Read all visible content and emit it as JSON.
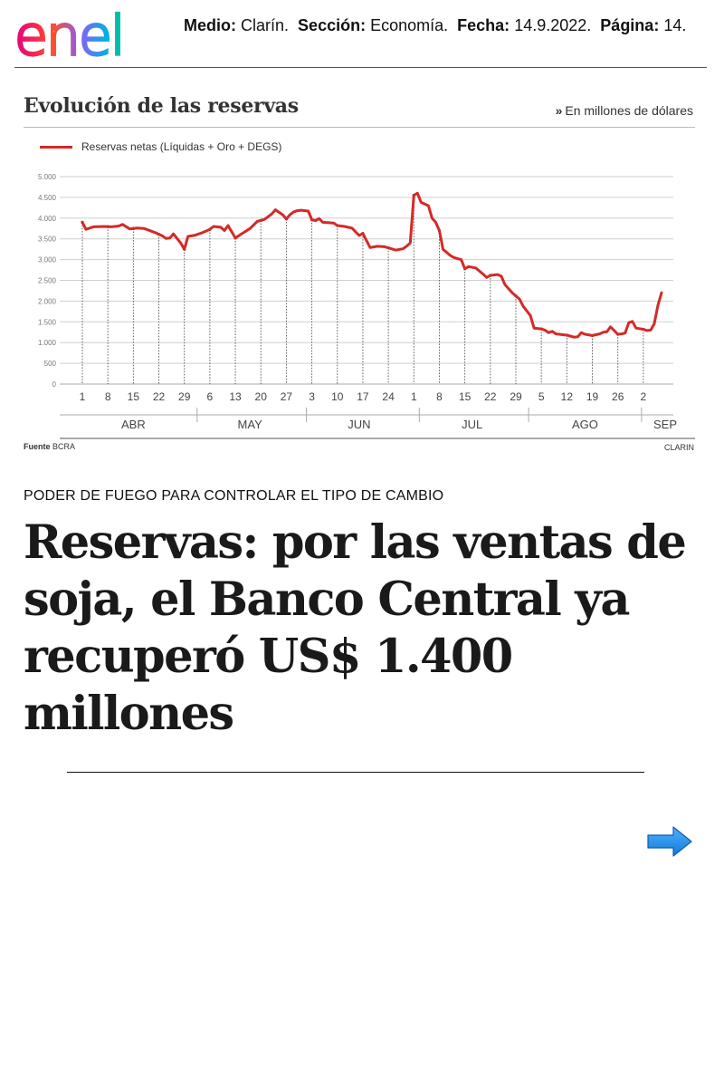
{
  "header": {
    "logo_text": "enel",
    "medio_label": "Medio:",
    "medio_value": "Clarín.",
    "seccion_label": "Sección:",
    "seccion_value": "Economía.",
    "fecha_label": "Fecha:",
    "fecha_value": "14.9.2022.",
    "pagina_label": "Página:",
    "pagina_value": "14."
  },
  "chart_data": {
    "type": "line",
    "title": "Evolución de las reservas",
    "units_note": "En millones de dólares",
    "series": [
      {
        "name": "Reservas netas (Líquidas + Oro + DEGS)",
        "color": "#d42a27",
        "points": [
          [
            0,
            3900
          ],
          [
            1,
            3730
          ],
          [
            3,
            3790
          ],
          [
            6,
            3800
          ],
          [
            8,
            3790
          ],
          [
            10,
            3810
          ],
          [
            11,
            3850
          ],
          [
            13,
            3740
          ],
          [
            15,
            3760
          ],
          [
            17,
            3750
          ],
          [
            20,
            3650
          ],
          [
            22,
            3570
          ],
          [
            23,
            3510
          ],
          [
            24,
            3520
          ],
          [
            25,
            3620
          ],
          [
            27,
            3400
          ],
          [
            28,
            3250
          ],
          [
            29,
            3560
          ],
          [
            31,
            3590
          ],
          [
            33,
            3650
          ],
          [
            35,
            3730
          ],
          [
            36,
            3800
          ],
          [
            38,
            3780
          ],
          [
            39,
            3700
          ],
          [
            40,
            3820
          ],
          [
            42,
            3520
          ],
          [
            43,
            3580
          ],
          [
            46,
            3750
          ],
          [
            48,
            3920
          ],
          [
            50,
            3970
          ],
          [
            52,
            4100
          ],
          [
            53,
            4200
          ],
          [
            55,
            4080
          ],
          [
            56,
            3980
          ],
          [
            57,
            4080
          ],
          [
            58,
            4150
          ],
          [
            59,
            4180
          ],
          [
            60,
            4190
          ],
          [
            62,
            4170
          ],
          [
            63,
            3960
          ],
          [
            64,
            3940
          ],
          [
            65,
            3990
          ],
          [
            66,
            3900
          ],
          [
            69,
            3880
          ],
          [
            70,
            3820
          ],
          [
            72,
            3800
          ],
          [
            74,
            3760
          ],
          [
            76,
            3580
          ],
          [
            77,
            3630
          ],
          [
            79,
            3290
          ],
          [
            81,
            3320
          ],
          [
            83,
            3310
          ],
          [
            86,
            3230
          ],
          [
            88,
            3260
          ],
          [
            89,
            3320
          ],
          [
            90,
            3400
          ],
          [
            91,
            4550
          ],
          [
            92,
            4600
          ],
          [
            93,
            4380
          ],
          [
            95,
            4300
          ],
          [
            96,
            4000
          ],
          [
            97,
            3900
          ],
          [
            98,
            3700
          ],
          [
            99,
            3250
          ],
          [
            101,
            3100
          ],
          [
            102,
            3050
          ],
          [
            104,
            3000
          ],
          [
            105,
            2780
          ],
          [
            106,
            2830
          ],
          [
            108,
            2800
          ],
          [
            110,
            2650
          ],
          [
            111,
            2570
          ],
          [
            112,
            2620
          ],
          [
            114,
            2640
          ],
          [
            115,
            2600
          ],
          [
            116,
            2400
          ],
          [
            118,
            2200
          ],
          [
            120,
            2050
          ],
          [
            121,
            1880
          ],
          [
            123,
            1650
          ],
          [
            124,
            1350
          ],
          [
            126,
            1330
          ],
          [
            127,
            1300
          ],
          [
            128,
            1240
          ],
          [
            129,
            1270
          ],
          [
            130,
            1210
          ],
          [
            133,
            1180
          ],
          [
            135,
            1130
          ],
          [
            136,
            1140
          ],
          [
            137,
            1240
          ],
          [
            138,
            1200
          ],
          [
            140,
            1170
          ],
          [
            142,
            1210
          ],
          [
            143,
            1250
          ],
          [
            144,
            1260
          ],
          [
            145,
            1380
          ],
          [
            147,
            1200
          ],
          [
            148,
            1210
          ],
          [
            149,
            1230
          ],
          [
            150,
            1480
          ],
          [
            151,
            1510
          ],
          [
            152,
            1350
          ],
          [
            154,
            1320
          ],
          [
            155,
            1290
          ],
          [
            156,
            1300
          ],
          [
            157,
            1450
          ],
          [
            158,
            1900
          ],
          [
            159,
            2200
          ]
        ]
      }
    ],
    "y_axis": {
      "ticks": [
        0,
        500,
        1000,
        1500,
        2000,
        2500,
        3000,
        3500,
        4000,
        4500,
        5000
      ],
      "tick_labels": [
        "0",
        "500",
        "1.000",
        "1.500",
        "2.000",
        "2.500",
        "3.000",
        "3.500",
        "4.000",
        "4.500",
        "5.000"
      ],
      "ylim": [
        0,
        5000
      ]
    },
    "x_axis": {
      "xlim": [
        0,
        159
      ],
      "ticks": [
        {
          "x": 0,
          "label": "1"
        },
        {
          "x": 7,
          "label": "8"
        },
        {
          "x": 14,
          "label": "15"
        },
        {
          "x": 21,
          "label": "22"
        },
        {
          "x": 28,
          "label": "29"
        },
        {
          "x": 35,
          "label": "6"
        },
        {
          "x": 42,
          "label": "13"
        },
        {
          "x": 49,
          "label": "20"
        },
        {
          "x": 56,
          "label": "27"
        },
        {
          "x": 63,
          "label": "3"
        },
        {
          "x": 70,
          "label": "10"
        },
        {
          "x": 77,
          "label": "17"
        },
        {
          "x": 84,
          "label": "24"
        },
        {
          "x": 91,
          "label": "1"
        },
        {
          "x": 98,
          "label": "8"
        },
        {
          "x": 105,
          "label": "15"
        },
        {
          "x": 112,
          "label": "22"
        },
        {
          "x": 119,
          "label": "29"
        },
        {
          "x": 126,
          "label": "5"
        },
        {
          "x": 133,
          "label": "12"
        },
        {
          "x": 140,
          "label": "19"
        },
        {
          "x": 147,
          "label": "26"
        },
        {
          "x": 154,
          "label": "2"
        }
      ],
      "months": [
        {
          "label": "ABR",
          "center": 14
        },
        {
          "label": "MAY",
          "center": 46
        },
        {
          "label": "JUN",
          "center": 76
        },
        {
          "label": "JUL",
          "center": 107
        },
        {
          "label": "AGO",
          "center": 138
        },
        {
          "label": "SEP",
          "center": 160
        }
      ],
      "month_separators": [
        31.5,
        61.5,
        92.5,
        122.5,
        153.5
      ]
    },
    "grid": true,
    "legend_position": "top-left",
    "source_label": "Fuente",
    "source_value": "BCRA",
    "credit": "CLARIN"
  },
  "article": {
    "kicker": "PODER DE FUEGO PARA CONTROLAR EL TIPO DE CAMBIO",
    "headline": "Reservas: por las ventas de soja, el Banco Central ya recuperó US$ 1.400 millones"
  },
  "colors": {
    "accent": "#d42a27",
    "nav_arrow": "#1e90ff"
  },
  "icons": {
    "next": "right-arrow-icon"
  }
}
